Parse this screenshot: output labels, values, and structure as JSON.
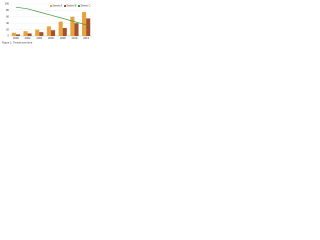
{
  "chart_data": {
    "type": "combo",
    "categories": [
      "2000",
      "2002",
      "2004",
      "2006",
      "2008",
      "2010",
      "2012"
    ],
    "series": [
      {
        "name": "Series A",
        "color": "#e8a33d",
        "type": "bar",
        "values": [
          10,
          15,
          20,
          30,
          45,
          60,
          75
        ]
      },
      {
        "name": "Series B",
        "color": "#a0522d",
        "type": "bar",
        "values": [
          5,
          8,
          12,
          18,
          25,
          40,
          55
        ]
      },
      {
        "name": "Series C",
        "color": "#3c9a3c",
        "type": "line",
        "values": [
          90,
          85,
          75,
          65,
          55,
          45,
          35
        ]
      }
    ],
    "ylim": [
      0,
      100
    ],
    "yticks": [
      0,
      20,
      40,
      60,
      80,
      100
    ],
    "grid": true,
    "caption": "Figure 1. Trends over time"
  }
}
